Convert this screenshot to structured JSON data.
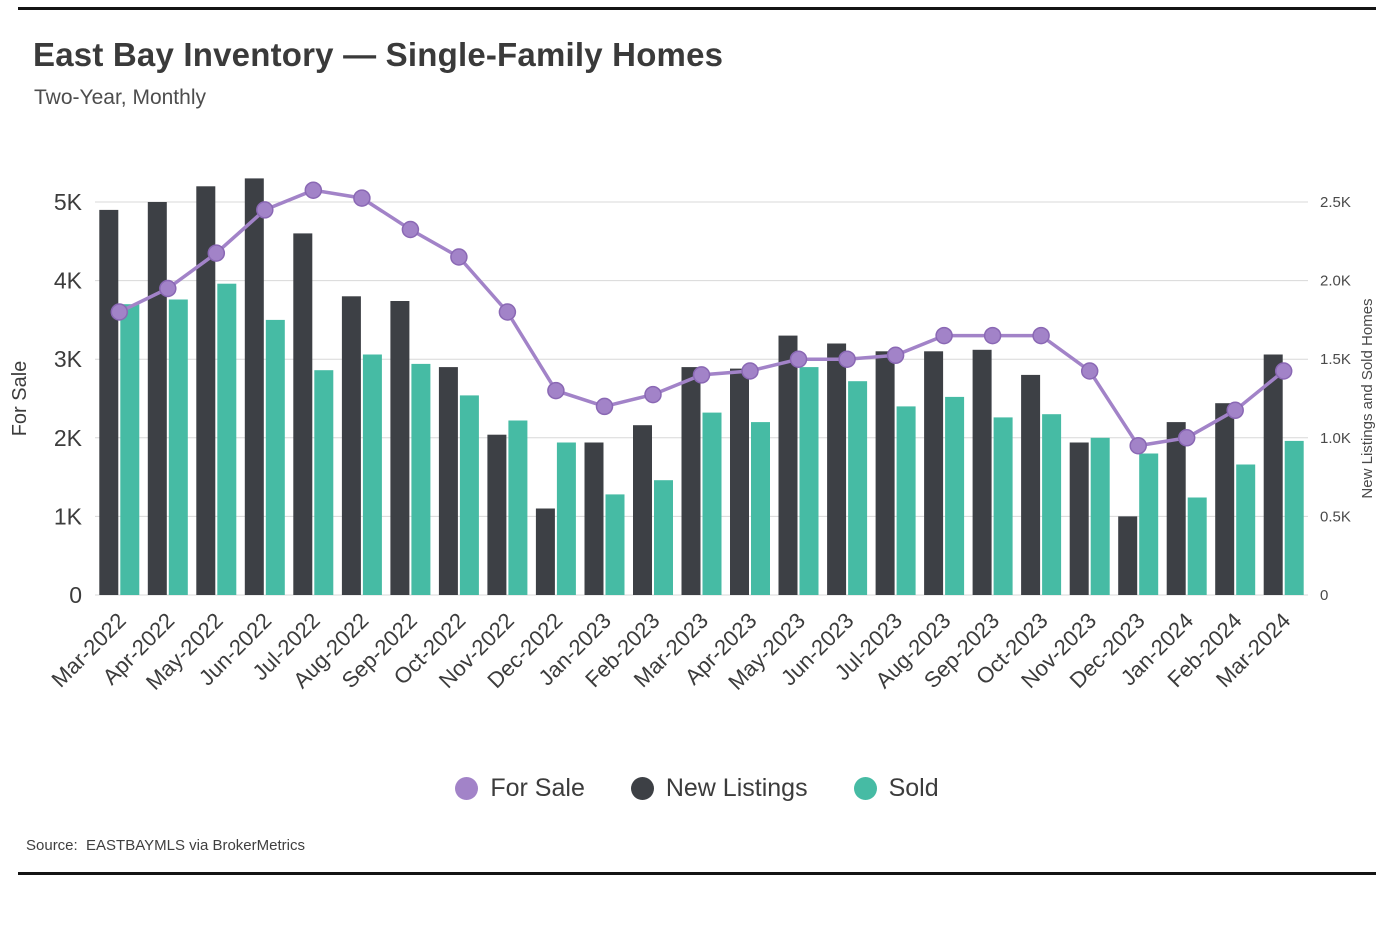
{
  "header": {
    "title": "East Bay Inventory — Single-Family Homes",
    "subtitle": "Two-Year, Monthly"
  },
  "chart_data": {
    "type": "combo-bar-line",
    "title": "East Bay Inventory — Single-Family Homes",
    "subtitle": "Two-Year, Monthly",
    "grid": true,
    "legend_position": "bottom",
    "categories": [
      "Mar-2022",
      "Apr-2022",
      "May-2022",
      "Jun-2022",
      "Jul-2022",
      "Aug-2022",
      "Sep-2022",
      "Oct-2022",
      "Nov-2022",
      "Dec-2022",
      "Jan-2023",
      "Feb-2023",
      "Mar-2023",
      "Apr-2023",
      "May-2023",
      "Jun-2023",
      "Jul-2023",
      "Aug-2023",
      "Sep-2023",
      "Oct-2023",
      "Nov-2023",
      "Dec-2023",
      "Jan-2024",
      "Feb-2024",
      "Mar-2024"
    ],
    "series": [
      {
        "name": "For Sale",
        "type": "line",
        "axis": "left",
        "color": "#a283c8",
        "marker_stroke": "#8a68b4",
        "values": [
          3600,
          3900,
          4350,
          4900,
          5150,
          5050,
          4650,
          4300,
          3600,
          2600,
          2400,
          2550,
          2800,
          2850,
          3000,
          3000,
          3050,
          3300,
          3300,
          3300,
          2850,
          1900,
          2000,
          2350,
          2850
        ]
      },
      {
        "name": "New Listings",
        "type": "bar",
        "axis": "right",
        "color": "#3d4045",
        "values": [
          2450,
          2500,
          2600,
          2650,
          2300,
          1900,
          1870,
          1450,
          1020,
          550,
          970,
          1080,
          1450,
          1440,
          1650,
          1600,
          1550,
          1550,
          1560,
          1400,
          970,
          500,
          1100,
          1220,
          1530
        ]
      },
      {
        "name": "Sold",
        "type": "bar",
        "axis": "right",
        "color": "#46bba4",
        "values": [
          1850,
          1880,
          1980,
          1750,
          1430,
          1530,
          1470,
          1270,
          1110,
          970,
          640,
          730,
          1160,
          1100,
          1450,
          1360,
          1200,
          1260,
          1130,
          1150,
          1000,
          900,
          620,
          830,
          980
        ]
      }
    ],
    "left_axis": {
      "label": "For Sale",
      "ticks": [
        "0",
        "1K",
        "2K",
        "3K",
        "4K",
        "5K"
      ],
      "tick_values": [
        0,
        1000,
        2000,
        3000,
        4000,
        5000
      ],
      "ylim": [
        0,
        5500
      ]
    },
    "right_axis": {
      "label": "New Listings and Sold Homes",
      "ticks": [
        "0",
        "0.5K",
        "1.0K",
        "1.5K",
        "2.0K",
        "2.5K"
      ],
      "tick_values": [
        0,
        500,
        1000,
        1500,
        2000,
        2500
      ],
      "ylim": [
        0,
        2750
      ]
    },
    "legend": [
      {
        "label": "For Sale",
        "color": "#a283c8"
      },
      {
        "label": "New Listings",
        "color": "#3d4045"
      },
      {
        "label": "Sold",
        "color": "#46bba4"
      }
    ]
  },
  "footer": {
    "source": "Source:  EASTBAYMLS via BrokerMetrics"
  }
}
